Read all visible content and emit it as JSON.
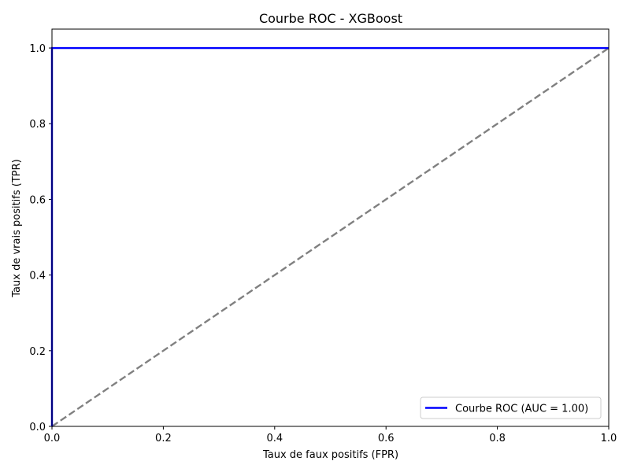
{
  "chart_data": {
    "type": "line",
    "title": "Courbe ROC - XGBoost",
    "xlabel": "Taux de faux positifs (FPR)",
    "ylabel": "Taux de vrais positifs (TPR)",
    "xlim": [
      0.0,
      1.0
    ],
    "ylim": [
      0.0,
      1.05
    ],
    "xticks": [
      0.0,
      0.2,
      0.4,
      0.6,
      0.8,
      1.0
    ],
    "yticks": [
      0.0,
      0.2,
      0.4,
      0.6,
      0.8,
      1.0
    ],
    "xtick_labels": [
      "0.0",
      "0.2",
      "0.4",
      "0.6",
      "0.8",
      "1.0"
    ],
    "ytick_labels": [
      "0.0",
      "0.2",
      "0.4",
      "0.6",
      "0.8",
      "1.0"
    ],
    "grid": false,
    "legend_position": "bottom-right",
    "series": [
      {
        "name": "Courbe ROC (AUC = 1.00)",
        "color": "#0000ff",
        "style": "solid",
        "x": [
          0.0,
          0.0,
          1.0
        ],
        "y": [
          0.0,
          1.0,
          1.0
        ]
      },
      {
        "color": "#808080",
        "style": "dashed",
        "x": [
          0.0,
          1.0
        ],
        "y": [
          0.0,
          1.0
        ]
      }
    ]
  }
}
